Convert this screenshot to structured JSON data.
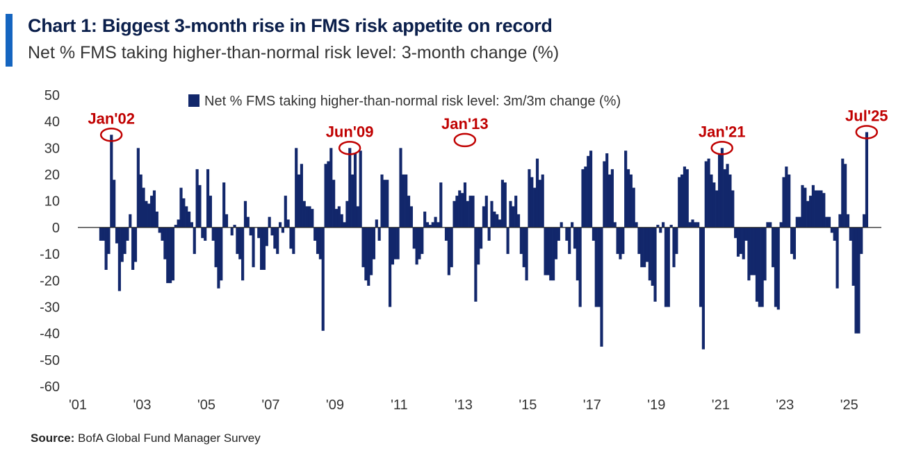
{
  "header": {
    "title": "Chart 1: Biggest 3-month rise in FMS risk appetite on record",
    "subtitle": "Net % FMS taking higher-than-normal risk level: 3-month change (%)"
  },
  "footer": {
    "source_label": "Source:",
    "source_text": "BofA Global Fund Manager Survey"
  },
  "colors": {
    "accent": "#1565c0",
    "bars": "#12276b",
    "annotation": "#c00000",
    "title": "#0b1f4b"
  },
  "chart_data": {
    "type": "bar",
    "title": "",
    "xlabel": "",
    "ylabel": "",
    "x_start": "2001-01",
    "x_end": "2025-12",
    "ylim": [
      -60,
      50
    ],
    "yticks": [
      50,
      40,
      30,
      20,
      10,
      0,
      -10,
      -20,
      -30,
      -40,
      -50,
      -60
    ],
    "xticks": [
      "'01",
      "'03",
      "'05",
      "'07",
      "'09",
      "'11",
      "'13",
      "'15",
      "'17",
      "'19",
      "'21",
      "'23",
      "'25"
    ],
    "legend": {
      "label": "Net % FMS taking higher-than-normal risk level: 3m/3m change (%)",
      "position": "top"
    },
    "series": [
      {
        "name": "Net % FMS taking higher-than-normal risk level: 3m/3m change (%)",
        "points": [
          [
            "2001-09",
            -5
          ],
          [
            "2001-10",
            -5
          ],
          [
            "2001-11",
            -16
          ],
          [
            "2001-12",
            -10
          ],
          [
            "2002-01",
            35
          ],
          [
            "2002-02",
            18
          ],
          [
            "2002-03",
            -6
          ],
          [
            "2002-04",
            -24
          ],
          [
            "2002-05",
            -13
          ],
          [
            "2002-06",
            -10
          ],
          [
            "2002-07",
            -5
          ],
          [
            "2002-08",
            5
          ],
          [
            "2002-09",
            -16
          ],
          [
            "2002-10",
            -13
          ],
          [
            "2002-11",
            30
          ],
          [
            "2002-12",
            20
          ],
          [
            "2003-01",
            15
          ],
          [
            "2003-02",
            10
          ],
          [
            "2003-03",
            9
          ],
          [
            "2003-04",
            12
          ],
          [
            "2003-05",
            14
          ],
          [
            "2003-06",
            6
          ],
          [
            "2003-07",
            -2
          ],
          [
            "2003-08",
            -5
          ],
          [
            "2003-09",
            -12
          ],
          [
            "2003-10",
            -21
          ],
          [
            "2003-11",
            -21
          ],
          [
            "2003-12",
            -20
          ],
          [
            "2004-01",
            1
          ],
          [
            "2004-02",
            3
          ],
          [
            "2004-03",
            15
          ],
          [
            "2004-04",
            11
          ],
          [
            "2004-05",
            8
          ],
          [
            "2004-06",
            6
          ],
          [
            "2004-07",
            2
          ],
          [
            "2004-08",
            -10
          ],
          [
            "2004-09",
            22
          ],
          [
            "2004-10",
            16
          ],
          [
            "2004-11",
            -4
          ],
          [
            "2004-12",
            -5
          ],
          [
            "2005-01",
            22
          ],
          [
            "2005-02",
            12
          ],
          [
            "2005-03",
            -5
          ],
          [
            "2005-04",
            -15
          ],
          [
            "2005-05",
            -23
          ],
          [
            "2005-06",
            -20
          ],
          [
            "2005-07",
            17
          ],
          [
            "2005-08",
            5
          ],
          [
            "2005-09",
            0
          ],
          [
            "2005-10",
            -3
          ],
          [
            "2005-11",
            1
          ],
          [
            "2005-12",
            -10
          ],
          [
            "2006-01",
            -12
          ],
          [
            "2006-02",
            -20
          ],
          [
            "2006-03",
            10
          ],
          [
            "2006-04",
            4
          ],
          [
            "2006-05",
            -3
          ],
          [
            "2006-06",
            -15
          ],
          [
            "2006-07",
            0
          ],
          [
            "2006-08",
            -4
          ],
          [
            "2006-09",
            -16
          ],
          [
            "2006-10",
            -16
          ],
          [
            "2006-11",
            -7
          ],
          [
            "2006-12",
            4
          ],
          [
            "2007-01",
            -3
          ],
          [
            "2007-02",
            -8
          ],
          [
            "2007-03",
            -10
          ],
          [
            "2007-04",
            2
          ],
          [
            "2007-05",
            -2
          ],
          [
            "2007-06",
            12
          ],
          [
            "2007-07",
            3
          ],
          [
            "2007-08",
            -8
          ],
          [
            "2007-09",
            -10
          ],
          [
            "2007-10",
            30
          ],
          [
            "2007-11",
            20
          ],
          [
            "2007-12",
            24
          ],
          [
            "2008-01",
            10
          ],
          [
            "2008-02",
            8
          ],
          [
            "2008-03",
            8
          ],
          [
            "2008-04",
            7
          ],
          [
            "2008-05",
            -5
          ],
          [
            "2008-06",
            -10
          ],
          [
            "2008-07",
            -12
          ],
          [
            "2008-08",
            -39
          ],
          [
            "2008-09",
            24
          ],
          [
            "2008-10",
            25
          ],
          [
            "2008-11",
            30
          ],
          [
            "2008-12",
            18
          ],
          [
            "2009-01",
            7
          ],
          [
            "2009-02",
            8
          ],
          [
            "2009-03",
            5
          ],
          [
            "2009-04",
            2
          ],
          [
            "2009-05",
            10
          ],
          [
            "2009-06",
            30
          ],
          [
            "2009-07",
            20
          ],
          [
            "2009-08",
            28
          ],
          [
            "2009-09",
            8
          ],
          [
            "2009-10",
            29
          ],
          [
            "2009-11",
            -15
          ],
          [
            "2009-12",
            -20
          ],
          [
            "2010-01",
            -22
          ],
          [
            "2010-02",
            -18
          ],
          [
            "2010-03",
            -12
          ],
          [
            "2010-04",
            3
          ],
          [
            "2010-05",
            -5
          ],
          [
            "2010-06",
            20
          ],
          [
            "2010-07",
            18
          ],
          [
            "2010-08",
            18
          ],
          [
            "2010-09",
            -30
          ],
          [
            "2010-10",
            -14
          ],
          [
            "2010-11",
            -12
          ],
          [
            "2010-12",
            -12
          ],
          [
            "2011-01",
            30
          ],
          [
            "2011-02",
            20
          ],
          [
            "2011-03",
            20
          ],
          [
            "2011-04",
            12
          ],
          [
            "2011-05",
            8
          ],
          [
            "2011-06",
            -8
          ],
          [
            "2011-07",
            -14
          ],
          [
            "2011-08",
            -12
          ],
          [
            "2011-09",
            -10
          ],
          [
            "2011-10",
            6
          ],
          [
            "2011-11",
            2
          ],
          [
            "2011-12",
            1
          ],
          [
            "2012-01",
            2
          ],
          [
            "2012-02",
            4
          ],
          [
            "2012-03",
            2
          ],
          [
            "2012-04",
            17
          ],
          [
            "2012-05",
            0
          ],
          [
            "2012-06",
            -5
          ],
          [
            "2012-07",
            -18
          ],
          [
            "2012-08",
            -15
          ],
          [
            "2012-09",
            10
          ],
          [
            "2012-10",
            12
          ],
          [
            "2012-11",
            14
          ],
          [
            "2012-12",
            13
          ],
          [
            "2013-01",
            17
          ],
          [
            "2013-02",
            10
          ],
          [
            "2013-03",
            12
          ],
          [
            "2013-04",
            12
          ],
          [
            "2013-05",
            -28
          ],
          [
            "2013-06",
            -14
          ],
          [
            "2013-07",
            -8
          ],
          [
            "2013-08",
            8
          ],
          [
            "2013-09",
            12
          ],
          [
            "2013-10",
            -5
          ],
          [
            "2013-11",
            10
          ],
          [
            "2013-12",
            6
          ],
          [
            "2014-01",
            5
          ],
          [
            "2014-02",
            3
          ],
          [
            "2014-03",
            18
          ],
          [
            "2014-04",
            17
          ],
          [
            "2014-05",
            -10
          ],
          [
            "2014-06",
            10
          ],
          [
            "2014-07",
            8
          ],
          [
            "2014-08",
            12
          ],
          [
            "2014-09",
            5
          ],
          [
            "2014-10",
            -10
          ],
          [
            "2014-11",
            -15
          ],
          [
            "2014-12",
            -20
          ],
          [
            "2015-01",
            22
          ],
          [
            "2015-02",
            19
          ],
          [
            "2015-03",
            15
          ],
          [
            "2015-04",
            26
          ],
          [
            "2015-05",
            18
          ],
          [
            "2015-06",
            20
          ],
          [
            "2015-07",
            -18
          ],
          [
            "2015-08",
            -18
          ],
          [
            "2015-09",
            -20
          ],
          [
            "2015-10",
            -20
          ],
          [
            "2015-11",
            -12
          ],
          [
            "2015-12",
            -5
          ],
          [
            "2016-01",
            2
          ],
          [
            "2016-02",
            0
          ],
          [
            "2016-03",
            -5
          ],
          [
            "2016-04",
            -10
          ],
          [
            "2016-05",
            2
          ],
          [
            "2016-06",
            -8
          ],
          [
            "2016-07",
            -20
          ],
          [
            "2016-08",
            -30
          ],
          [
            "2016-09",
            22
          ],
          [
            "2016-10",
            23
          ],
          [
            "2016-11",
            27
          ],
          [
            "2016-12",
            29
          ],
          [
            "2017-01",
            -5
          ],
          [
            "2017-02",
            -30
          ],
          [
            "2017-03",
            -30
          ],
          [
            "2017-04",
            -45
          ],
          [
            "2017-05",
            25
          ],
          [
            "2017-06",
            28
          ],
          [
            "2017-07",
            20
          ],
          [
            "2017-08",
            22
          ],
          [
            "2017-09",
            2
          ],
          [
            "2017-10",
            -10
          ],
          [
            "2017-11",
            -12
          ],
          [
            "2017-12",
            -10
          ],
          [
            "2018-01",
            29
          ],
          [
            "2018-02",
            22
          ],
          [
            "2018-03",
            20
          ],
          [
            "2018-04",
            15
          ],
          [
            "2018-05",
            2
          ],
          [
            "2018-06",
            -10
          ],
          [
            "2018-07",
            -15
          ],
          [
            "2018-08",
            -15
          ],
          [
            "2018-09",
            -13
          ],
          [
            "2018-10",
            -20
          ],
          [
            "2018-11",
            -22
          ],
          [
            "2018-12",
            -28
          ],
          [
            "2019-01",
            1
          ],
          [
            "2019-02",
            -2
          ],
          [
            "2019-03",
            2
          ],
          [
            "2019-04",
            -30
          ],
          [
            "2019-05",
            -30
          ],
          [
            "2019-06",
            1
          ],
          [
            "2019-07",
            -15
          ],
          [
            "2019-08",
            -10
          ],
          [
            "2019-09",
            19
          ],
          [
            "2019-10",
            20
          ],
          [
            "2019-11",
            23
          ],
          [
            "2019-12",
            22
          ],
          [
            "2020-01",
            2
          ],
          [
            "2020-02",
            3
          ],
          [
            "2020-03",
            2
          ],
          [
            "2020-04",
            2
          ],
          [
            "2020-05",
            -30
          ],
          [
            "2020-06",
            -46
          ],
          [
            "2020-07",
            25
          ],
          [
            "2020-08",
            26
          ],
          [
            "2020-09",
            20
          ],
          [
            "2020-10",
            17
          ],
          [
            "2020-11",
            14
          ],
          [
            "2020-12",
            28
          ],
          [
            "2021-01",
            30
          ],
          [
            "2021-02",
            22
          ],
          [
            "2021-03",
            24
          ],
          [
            "2021-04",
            20
          ],
          [
            "2021-05",
            14
          ],
          [
            "2021-06",
            -4
          ],
          [
            "2021-07",
            -11
          ],
          [
            "2021-08",
            -10
          ],
          [
            "2021-09",
            -12
          ],
          [
            "2021-10",
            -5
          ],
          [
            "2021-11",
            -20
          ],
          [
            "2021-12",
            -18
          ],
          [
            "2022-01",
            -18
          ],
          [
            "2022-02",
            -28
          ],
          [
            "2022-03",
            -30
          ],
          [
            "2022-04",
            -30
          ],
          [
            "2022-05",
            -20
          ],
          [
            "2022-06",
            2
          ],
          [
            "2022-07",
            2
          ],
          [
            "2022-08",
            -15
          ],
          [
            "2022-09",
            -30
          ],
          [
            "2022-10",
            -31
          ],
          [
            "2022-11",
            2
          ],
          [
            "2022-12",
            19
          ],
          [
            "2023-01",
            23
          ],
          [
            "2023-02",
            20
          ],
          [
            "2023-03",
            -10
          ],
          [
            "2023-04",
            -12
          ],
          [
            "2023-05",
            4
          ],
          [
            "2023-06",
            4
          ],
          [
            "2023-07",
            16
          ],
          [
            "2023-08",
            15
          ],
          [
            "2023-09",
            10
          ],
          [
            "2023-10",
            12
          ],
          [
            "2023-11",
            16
          ],
          [
            "2023-12",
            14
          ],
          [
            "2024-01",
            14
          ],
          [
            "2024-02",
            14
          ],
          [
            "2024-03",
            13
          ],
          [
            "2024-04",
            4
          ],
          [
            "2024-05",
            4
          ],
          [
            "2024-06",
            -2
          ],
          [
            "2024-07",
            -5
          ],
          [
            "2024-08",
            -23
          ],
          [
            "2024-09",
            5
          ],
          [
            "2024-10",
            26
          ],
          [
            "2024-11",
            24
          ],
          [
            "2024-12",
            5
          ],
          [
            "2025-01",
            -5
          ],
          [
            "2025-02",
            -22
          ],
          [
            "2025-03",
            -40
          ],
          [
            "2025-04",
            -40
          ],
          [
            "2025-05",
            -10
          ],
          [
            "2025-06",
            5
          ],
          [
            "2025-07",
            36
          ]
        ]
      }
    ],
    "annotations": [
      {
        "label": "Jan'02",
        "x": "2002-01",
        "y": 35
      },
      {
        "label": "Jun'09",
        "x": "2009-06",
        "y": 30
      },
      {
        "label": "Jan'13",
        "x": "2013-01",
        "y": 33
      },
      {
        "label": "Jan'21",
        "x": "2021-01",
        "y": 30
      },
      {
        "label": "Jul'25",
        "x": "2025-07",
        "y": 36
      }
    ]
  }
}
